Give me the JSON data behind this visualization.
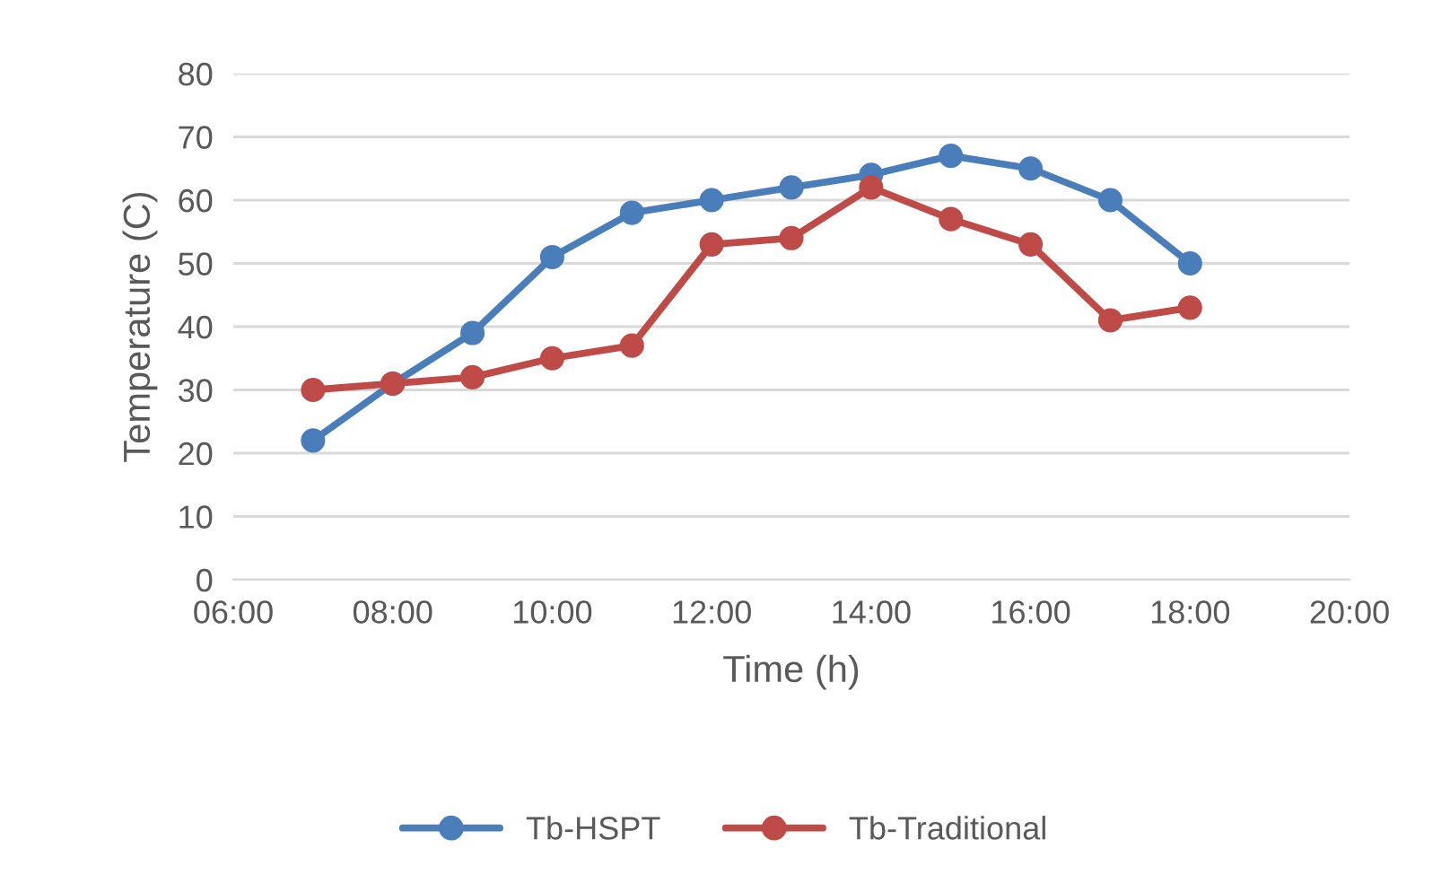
{
  "chart_data": {
    "type": "line",
    "xlabel": "Time (h)",
    "ylabel": "Temperature (C)",
    "xlim": [
      6,
      20
    ],
    "xticks": [
      {
        "value": 6,
        "label": "06:00"
      },
      {
        "value": 8,
        "label": "08:00"
      },
      {
        "value": 10,
        "label": "10:00"
      },
      {
        "value": 12,
        "label": "12:00"
      },
      {
        "value": 14,
        "label": "14:00"
      },
      {
        "value": 16,
        "label": "16:00"
      },
      {
        "value": 18,
        "label": "18:00"
      },
      {
        "value": 20,
        "label": "20:00"
      }
    ],
    "ylim": [
      0,
      80
    ],
    "yticks": [
      0,
      10,
      20,
      30,
      40,
      50,
      60,
      70,
      80
    ],
    "x": [
      7,
      8,
      9,
      10,
      11,
      12,
      13,
      14,
      15,
      16,
      17,
      18
    ],
    "series": [
      {
        "name": "Tb-HSPT",
        "color": "#4a7ebb",
        "values": [
          22,
          31,
          39,
          51,
          58,
          60,
          62,
          64,
          67,
          65,
          60,
          50
        ]
      },
      {
        "name": "Tb-Traditional",
        "color": "#be4b48",
        "values": [
          30,
          31,
          32,
          35,
          37,
          53,
          54,
          62,
          57,
          53,
          41,
          43
        ]
      }
    ],
    "grid": "y",
    "legend": "bottom",
    "marker": "circle",
    "line_style": "solid"
  }
}
